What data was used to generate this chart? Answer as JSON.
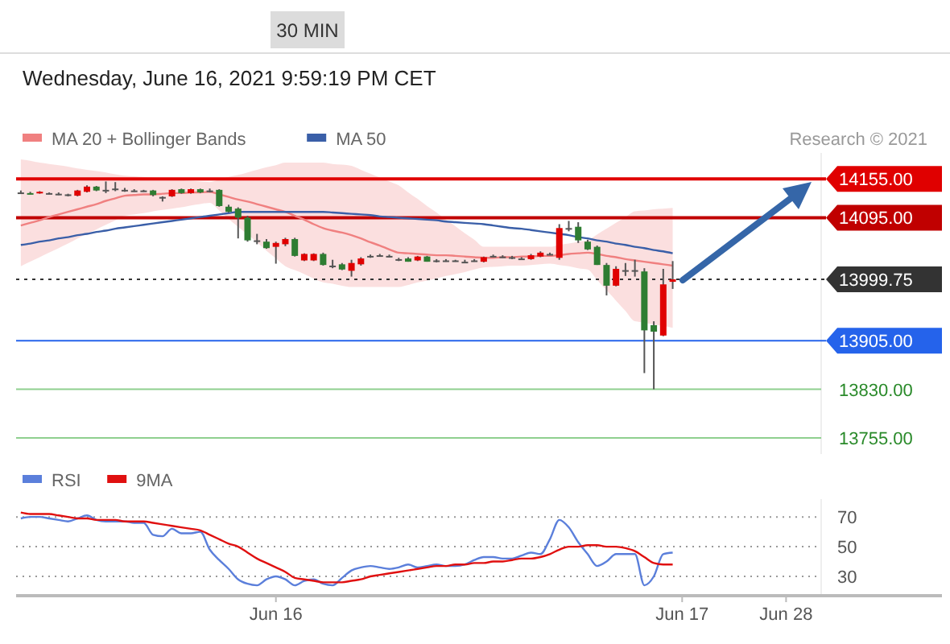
{
  "chart_data": [
    {
      "type": "candlestick",
      "subtitle": "Wednesday, June 16, 2021 9:59:19 PM CET",
      "annotations": [
        "30 MIN",
        "Research © 2021"
      ],
      "categories": [
        null,
        null,
        null,
        null,
        null,
        null,
        null,
        null,
        null,
        null,
        null,
        null,
        null,
        null,
        null,
        null,
        null,
        null,
        null,
        null,
        null,
        null,
        null,
        null,
        null,
        null,
        null,
        null,
        null,
        null,
        null,
        null,
        null,
        null,
        null,
        null,
        null,
        null,
        null,
        null,
        null,
        null,
        null,
        null,
        null,
        null,
        null,
        null,
        null,
        null,
        null,
        null,
        null,
        null,
        null,
        null,
        null,
        null,
        null,
        null,
        null,
        null,
        null,
        null,
        null,
        null,
        null,
        null,
        null,
        null,
        null,
        null,
        null,
        null,
        null,
        null,
        null,
        null,
        null,
        null,
        null,
        null,
        null,
        null,
        null,
        null,
        null,
        null,
        null,
        null,
        null,
        null,
        null,
        null,
        null,
        null,
        null,
        null
      ],
      "ohlc": [
        [
          14134,
          14137,
          14132,
          14134
        ],
        [
          14133,
          14135,
          14131,
          14132
        ],
        [
          14134,
          14136,
          14132,
          14135
        ],
        [
          14133,
          14134,
          14131,
          14133
        ],
        [
          14132,
          14134,
          14130,
          14132
        ],
        [
          14131,
          14132,
          14128,
          14131
        ],
        [
          14129,
          14138,
          14128,
          14137
        ],
        [
          14135,
          14145,
          14134,
          14143
        ],
        [
          14143,
          14144,
          14136,
          14137
        ],
        [
          14138,
          14151,
          14133,
          14138
        ],
        [
          14140,
          14150,
          14136,
          14140
        ],
        [
          14138,
          14141,
          14135,
          14138
        ],
        [
          14137,
          14139,
          14135,
          14137
        ],
        [
          14137,
          14138,
          14135,
          14137
        ],
        [
          14137,
          14138,
          14128,
          14130
        ],
        [
          14127,
          14128,
          14120,
          14127
        ],
        [
          14128,
          14139,
          14127,
          14138
        ],
        [
          14139,
          14140,
          14132,
          14133
        ],
        [
          14133,
          14140,
          14132,
          14139
        ],
        [
          14139,
          14140,
          14133,
          14134
        ],
        [
          14137,
          14140,
          14134,
          14137
        ],
        [
          14138,
          14139,
          14112,
          14113
        ],
        [
          14112,
          14115,
          14103,
          14104
        ],
        [
          14109,
          14111,
          14063,
          14095
        ],
        [
          14095,
          14098,
          14058,
          14060
        ],
        [
          14060,
          14070,
          14054,
          14060
        ],
        [
          14058,
          14062,
          14047,
          14048
        ],
        [
          14050,
          14058,
          14024,
          14056
        ],
        [
          14054,
          14064,
          14051,
          14062
        ],
        [
          14062,
          14064,
          14035,
          14036
        ],
        [
          14029,
          14040,
          14028,
          14039
        ],
        [
          14029,
          14040,
          14028,
          14039
        ],
        [
          14039,
          14041,
          14021,
          14022
        ],
        [
          14021,
          14030,
          14017,
          14021
        ],
        [
          14023,
          14025,
          14014,
          14015
        ],
        [
          14013,
          14030,
          14004,
          14025
        ],
        [
          14023,
          14034,
          14021,
          14032
        ],
        [
          14036,
          14038,
          14033,
          14036
        ],
        [
          14037,
          14039,
          14035,
          14037
        ],
        [
          14036,
          14038,
          14034,
          14036
        ],
        [
          14031,
          14033,
          14028,
          14031
        ],
        [
          14032,
          14034,
          14027,
          14027
        ],
        [
          14029,
          14036,
          14028,
          14035
        ],
        [
          14035,
          14036,
          14027,
          14027
        ],
        [
          14029,
          14031,
          14026,
          14029
        ],
        [
          14029,
          14031,
          14027,
          14029
        ],
        [
          14029,
          14030,
          14027,
          14029
        ],
        [
          14027,
          14030,
          14025,
          14027
        ],
        [
          14029,
          14031,
          14027,
          14029
        ],
        [
          14027,
          14035,
          14026,
          14034
        ],
        [
          14036,
          14038,
          14034,
          14036
        ],
        [
          14035,
          14037,
          14033,
          14035
        ],
        [
          14034,
          14036,
          14031,
          14034
        ],
        [
          14032,
          14034,
          14030,
          14032
        ],
        [
          14031,
          14039,
          14030,
          14037
        ],
        [
          14035,
          14043,
          14034,
          14041
        ],
        [
          14039,
          14041,
          14037,
          14039
        ],
        [
          14033,
          14085,
          14030,
          14079
        ],
        [
          14079,
          14090,
          14074,
          14079
        ],
        [
          14081,
          14088,
          14056,
          14060
        ],
        [
          14058,
          14061,
          14045,
          14046
        ],
        [
          14050,
          14052,
          14022,
          14022
        ],
        [
          14022,
          14025,
          13975,
          13990
        ],
        [
          13990,
          14020,
          13989,
          14016
        ],
        [
          14014,
          14025,
          14005,
          14014
        ],
        [
          14014,
          14030,
          14004,
          14014
        ],
        [
          14012,
          14017,
          13855,
          13921
        ],
        [
          13929,
          13935,
          13830,
          13919
        ],
        [
          13913,
          14016,
          13912,
          13992
        ],
        [
          13996,
          14028,
          13985,
          13999.75
        ],
        null,
        null,
        null,
        null,
        null,
        null,
        null,
        null,
        null,
        null,
        null,
        null,
        null,
        null,
        null,
        null,
        null,
        null,
        null,
        null,
        null,
        null,
        null,
        null,
        null,
        null,
        null,
        null
      ],
      "ylim": [
        13730,
        14195
      ],
      "legend": "top left",
      "series": [
        {
          "name": "MA 20 + Bollinger Bands",
          "type": "line",
          "color": "#f08080",
          "values": [
            14083,
            14087,
            14091,
            14096,
            14100,
            14104,
            14108,
            14112,
            14116,
            14121,
            14125,
            14129,
            14130,
            14131,
            14131,
            14132,
            14133,
            14133,
            14134,
            14134,
            14135,
            14131,
            14127,
            14123,
            14120,
            14116,
            14112,
            14108,
            14104,
            14098,
            14092,
            14085,
            14079,
            14075,
            14072,
            14068,
            14063,
            14057,
            14052,
            14046,
            14041,
            14040,
            14039,
            14038,
            14037,
            14037,
            14036,
            14035,
            14034,
            14033,
            14033,
            14034,
            14034,
            14035,
            14035,
            14036,
            14036,
            14037,
            14039,
            14040,
            14041,
            14039,
            14036,
            14034,
            14031,
            14029,
            14027,
            14025,
            14023,
            14021,
            null,
            null,
            null,
            null,
            null,
            null,
            null,
            null,
            null,
            null,
            null,
            null,
            null,
            null,
            null,
            null,
            null,
            null,
            null,
            null,
            null,
            null,
            null,
            null,
            null,
            null,
            null,
            null
          ],
          "upper": [
            14185,
            14183,
            14180,
            14178,
            14176,
            14174,
            14171,
            14169,
            14167,
            14165,
            14162,
            14160,
            14159,
            14158,
            14157,
            14156,
            14154,
            14153,
            14152,
            14151,
            14150,
            14154,
            14158,
            14161,
            14165,
            14169,
            14173,
            14176,
            14180,
            14180,
            14180,
            14180,
            14180,
            14178,
            14177,
            14175,
            14169,
            14163,
            14157,
            14151,
            14145,
            14134,
            14124,
            14113,
            14103,
            14092,
            14082,
            14071,
            14061,
            14050,
            14050,
            14050,
            14050,
            14050,
            14050,
            14050,
            14050,
            14053,
            14055,
            14058,
            14060,
            14069,
            14078,
            14087,
            14096,
            14105,
            14106,
            14108,
            14109,
            14110,
            null,
            null,
            null,
            null,
            null,
            null,
            null,
            null,
            null,
            null,
            null,
            null,
            null,
            null,
            null,
            null,
            null,
            null,
            null,
            null,
            null,
            null,
            null,
            null,
            null,
            null,
            null,
            null
          ],
          "lower": [
            14020,
            14027,
            14034,
            14041,
            14048,
            14055,
            14063,
            14070,
            14077,
            14084,
            14091,
            14098,
            14100,
            14102,
            14105,
            14107,
            14109,
            14111,
            14114,
            14116,
            14118,
            14106,
            14093,
            14081,
            14069,
            14057,
            14044,
            14032,
            14020,
            14014,
            14008,
            14001,
            13995,
            13993,
            13990,
            13988,
            13988,
            13988,
            13988,
            13988,
            13988,
            13991,
            13995,
            13998,
            14001,
            14005,
            14008,
            14011,
            14015,
            14018,
            14019,
            14020,
            14021,
            14021,
            14022,
            14023,
            14024,
            14022,
            14020,
            14017,
            14015,
            13999,
            13983,
            13967,
            13951,
            13935,
            13933,
            13930,
            13928,
            13925,
            null,
            null,
            null,
            null,
            null,
            null,
            null,
            null,
            null,
            null,
            null,
            null,
            null,
            null,
            null,
            null,
            null,
            null,
            null,
            null,
            null,
            null,
            null,
            null,
            null,
            null,
            null,
            null
          ]
        },
        {
          "name": "MA 50",
          "type": "line",
          "color": "#3a5fa8",
          "values": [
            14053,
            14055,
            14058,
            14060,
            14063,
            14065,
            14068,
            14070,
            14073,
            14075,
            14078,
            14080,
            14082,
            14084,
            14086,
            14088,
            14090,
            14092,
            14094,
            14096,
            14098,
            14100,
            14102,
            14104,
            14104,
            14104,
            14104,
            14104,
            14104,
            14104,
            14104,
            14104,
            14104,
            14103,
            14102,
            14101,
            14100,
            14099,
            14097,
            14096,
            14095,
            14094,
            14093,
            14092,
            14091,
            14089,
            14088,
            14087,
            14086,
            14085,
            14083,
            14081,
            14079,
            14078,
            14076,
            14074,
            14072,
            14070,
            14068,
            14065,
            14063,
            14060,
            14058,
            14055,
            14053,
            14050,
            14048,
            14045,
            14043,
            14040,
            null,
            null,
            null,
            null,
            null,
            null,
            null,
            null,
            null,
            null,
            null,
            null,
            null,
            null,
            null,
            null,
            null,
            null,
            null,
            null,
            null,
            null,
            null,
            null,
            null,
            null,
            null,
            null
          ]
        }
      ],
      "ref_lines": [
        {
          "axis": "y",
          "value": 14155,
          "label": "14155.00",
          "color": "#e00000",
          "line_style": "solid"
        },
        {
          "axis": "y",
          "value": 14095,
          "label": "14095.00",
          "color": "#c00000",
          "line_style": "solid"
        },
        {
          "axis": "y",
          "value": 13999.75,
          "label": "13999.75",
          "color": "#333333",
          "line_style": "dotted"
        },
        {
          "axis": "y",
          "value": 13905,
          "label": "13905.00",
          "color": "#2563eb",
          "line_style": "solid"
        },
        {
          "axis": "y",
          "value": 13830,
          "label": "13830.00",
          "color": "#8fd08f",
          "line_style": "solid"
        },
        {
          "axis": "y",
          "value": 13755,
          "label": "13755.00",
          "color": "#8fd08f",
          "line_style": "solid"
        }
      ]
    },
    {
      "type": "line",
      "ylim": [
        17,
        82
      ],
      "yticks": [
        30,
        50,
        70
      ],
      "grid": "y",
      "legend": "top left",
      "categories": [
        null,
        null,
        null,
        null,
        null,
        null,
        null,
        null,
        null,
        null,
        null,
        null,
        null,
        null,
        null,
        null,
        null,
        null,
        null,
        null,
        null,
        null,
        null,
        null,
        null,
        null,
        null,
        "Jun 16",
        null,
        null,
        null,
        null,
        null,
        null,
        null,
        null,
        null,
        null,
        null,
        null,
        null,
        null,
        null,
        null,
        null,
        null,
        null,
        null,
        null,
        null,
        null,
        null,
        null,
        null,
        null,
        null,
        null,
        null,
        null,
        null,
        null,
        null,
        null,
        null,
        null,
        null,
        null,
        null,
        null,
        null,
        "Jun 17",
        null,
        null,
        null,
        null,
        null,
        null,
        null,
        null,
        null,
        null,
        "Jun 28",
        null,
        null,
        null,
        null,
        null,
        null,
        null,
        null,
        null,
        null,
        null,
        null,
        null,
        null,
        null,
        null
      ],
      "series": [
        {
          "name": "RSI",
          "color": "#5b7fdb",
          "values": [
            69,
            70,
            70,
            69,
            68,
            67,
            69,
            71,
            68,
            67,
            67,
            67,
            66,
            66,
            58,
            57,
            62,
            59,
            59,
            60,
            48,
            41,
            35,
            28,
            25,
            24,
            28,
            30,
            28,
            24,
            27,
            28,
            25,
            24,
            29,
            34,
            36,
            37,
            36,
            35,
            36,
            38,
            36,
            37,
            38,
            37,
            37,
            38,
            41,
            43,
            43,
            42,
            42,
            44,
            46,
            45,
            55,
            68,
            63,
            53,
            45,
            37,
            40,
            45,
            45,
            45,
            24,
            30,
            45,
            46,
            null,
            null,
            null,
            null,
            null,
            null,
            null,
            null,
            null,
            null,
            null,
            null,
            null,
            null,
            null,
            null,
            null,
            null,
            null,
            null,
            null,
            null,
            null,
            null,
            null,
            null,
            null,
            null
          ]
        },
        {
          "name": "9MA",
          "color": "#e01010",
          "values": [
            73,
            72,
            72,
            72,
            71,
            70,
            69,
            69,
            68,
            68,
            68,
            67,
            67,
            67,
            66,
            65,
            64,
            63,
            62,
            61,
            58,
            55,
            52,
            50,
            46,
            42,
            39,
            36,
            33,
            29,
            28,
            27,
            26,
            26,
            26,
            27,
            28,
            30,
            31,
            32,
            33,
            34,
            35,
            36,
            37,
            37,
            38,
            38,
            39,
            39,
            40,
            40,
            41,
            42,
            42,
            43,
            45,
            48,
            50,
            50,
            51,
            51,
            50,
            50,
            49,
            47,
            43,
            39,
            38,
            38,
            null,
            null,
            null,
            null,
            null,
            null,
            null,
            null,
            null,
            null,
            null,
            null,
            null,
            null,
            null,
            null,
            null,
            null,
            null,
            null,
            null,
            null,
            null,
            null,
            null,
            null,
            null,
            null
          ]
        }
      ]
    }
  ]
}
